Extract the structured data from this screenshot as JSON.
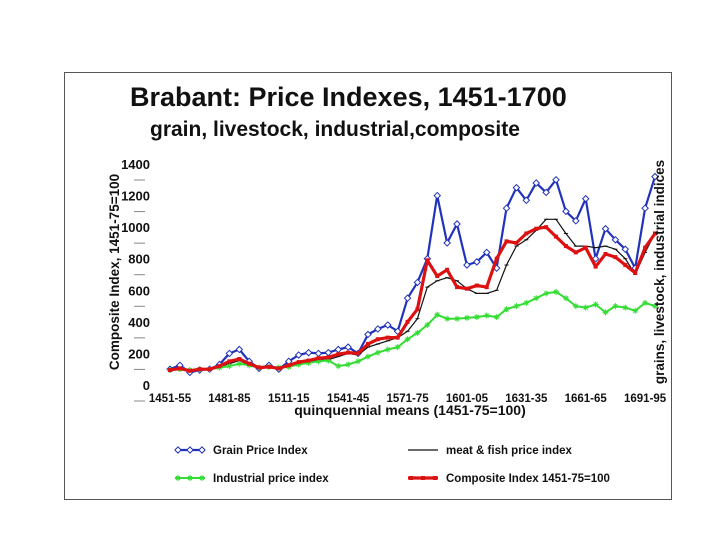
{
  "chart_data": {
    "type": "line",
    "title": "Brabant: Price Indexes, 1451-1700",
    "subtitle": "grain, livestock, industrial,composite",
    "xlabel": "quinquennial means (1451-75=100)",
    "ylabel": "Composite Index, 1451-75=100",
    "ylabel_right": "grains, livestock, industrial indices",
    "ylim": [
      0,
      1400
    ],
    "yticks": [
      0,
      200,
      400,
      600,
      800,
      1000,
      1200,
      1400
    ],
    "xtick_labels": [
      "1451-55",
      "1481-85",
      "1511-15",
      "1541-45",
      "1571-75",
      "1601-05",
      "1631-35",
      "1661-65",
      "1691-95"
    ],
    "xtick_indices": [
      0,
      6,
      12,
      18,
      24,
      30,
      36,
      42,
      48
    ],
    "x_count": 50,
    "legend_position": "bottom",
    "series": [
      {
        "name": "Grain Price Index",
        "color": "#2233bb",
        "marker": "diamond",
        "values": [
          100,
          125,
          80,
          95,
          100,
          130,
          200,
          225,
          150,
          105,
          125,
          100,
          150,
          190,
          205,
          200,
          205,
          225,
          240,
          200,
          320,
          355,
          380,
          340,
          550,
          650,
          800,
          1200,
          900,
          1020,
          760,
          780,
          840,
          740,
          1120,
          1250,
          1170,
          1280,
          1220,
          1300,
          1100,
          1040,
          1180,
          800,
          990,
          920,
          860,
          740,
          1120,
          1320
        ]
      },
      {
        "name": "meat & fish price index",
        "color": "#111111",
        "marker": "dash",
        "values": [
          95,
          100,
          90,
          95,
          100,
          115,
          135,
          155,
          125,
          105,
          110,
          105,
          120,
          135,
          145,
          155,
          160,
          180,
          200,
          190,
          240,
          260,
          280,
          300,
          340,
          420,
          620,
          660,
          680,
          660,
          610,
          580,
          580,
          600,
          760,
          880,
          920,
          980,
          1050,
          1050,
          960,
          880,
          880,
          870,
          880,
          860,
          800,
          700,
          840,
          960
        ]
      },
      {
        "name": "Industrial price index",
        "color": "#33dd33",
        "marker": "star",
        "values": [
          95,
          100,
          95,
          100,
          100,
          110,
          120,
          135,
          125,
          110,
          115,
          110,
          115,
          130,
          140,
          150,
          155,
          120,
          130,
          150,
          180,
          205,
          225,
          240,
          290,
          330,
          380,
          445,
          420,
          420,
          425,
          430,
          440,
          430,
          480,
          500,
          520,
          550,
          580,
          590,
          550,
          500,
          490,
          510,
          460,
          500,
          490,
          470,
          520,
          500
        ]
      },
      {
        "name": "Composite Index 1451-75=100",
        "color": "#dd1111",
        "marker": "square",
        "values": [
          95,
          105,
          90,
          100,
          100,
          120,
          150,
          165,
          135,
          110,
          115,
          105,
          125,
          145,
          155,
          170,
          175,
          195,
          205,
          200,
          260,
          290,
          300,
          300,
          400,
          480,
          790,
          690,
          730,
          620,
          610,
          630,
          620,
          800,
          910,
          900,
          960,
          990,
          1000,
          940,
          880,
          840,
          870,
          750,
          830,
          810,
          760,
          710,
          870,
          960
        ]
      }
    ]
  }
}
